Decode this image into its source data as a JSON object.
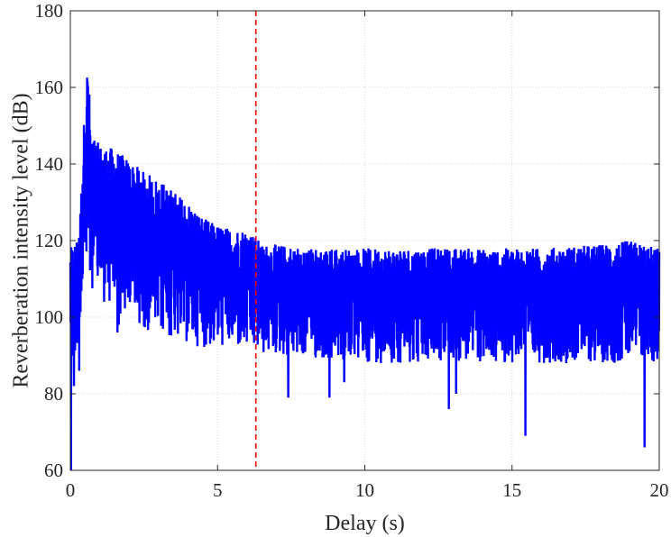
{
  "chart_data": {
    "type": "line",
    "title": "",
    "xlabel": "Delay (s)",
    "ylabel": "Reverberation intensity level (dB)",
    "xlim": [
      0,
      20
    ],
    "ylim": [
      60,
      180
    ],
    "xticks": [
      0,
      5,
      10,
      15,
      20
    ],
    "yticks": [
      60,
      80,
      100,
      120,
      140,
      160,
      180
    ],
    "grid": "dotted",
    "legend": "none",
    "series": [
      {
        "color": "#0000ff",
        "style": "solid",
        "envelope": {
          "x": [
            0,
            0.1,
            0.3,
            0.5,
            0.6,
            0.7,
            1.0,
            1.5,
            2.0,
            2.5,
            3.0,
            3.5,
            4.0,
            4.5,
            5.0,
            5.5,
            6.0,
            6.3,
            6.5,
            7.0,
            8.0,
            10.0,
            12.0,
            14.0,
            16.0,
            18.0,
            19.0,
            20.0
          ],
          "upper": [
            118,
            119,
            121,
            158,
            168,
            148,
            145,
            144,
            141,
            138,
            136,
            133,
            130,
            126,
            124,
            123,
            123,
            121,
            119,
            119,
            118,
            118,
            118,
            118,
            118,
            119,
            120,
            118
          ],
          "lower": [
            82,
            85,
            94,
            108,
            112,
            108,
            104,
            101,
            99,
            97,
            95,
            94,
            93,
            92,
            92,
            92,
            91,
            91,
            90,
            90,
            89,
            88,
            88,
            88,
            88,
            88,
            88,
            88
          ]
        },
        "spikes": [
          {
            "x": 0.02,
            "y": 60
          },
          {
            "x": 0.12,
            "y": 82
          },
          {
            "x": 0.3,
            "y": 86
          },
          {
            "x": 1.6,
            "y": 96
          },
          {
            "x": 1.65,
            "y": 98
          },
          {
            "x": 3.55,
            "y": 98
          },
          {
            "x": 7.4,
            "y": 79
          },
          {
            "x": 8.8,
            "y": 79
          },
          {
            "x": 9.3,
            "y": 83
          },
          {
            "x": 12.85,
            "y": 76
          },
          {
            "x": 13.1,
            "y": 80
          },
          {
            "x": 15.45,
            "y": 69
          },
          {
            "x": 19.5,
            "y": 66
          }
        ]
      }
    ],
    "annotations": [
      {
        "type": "vline",
        "x": 6.3,
        "color": "#ff0000",
        "style": "dashed"
      }
    ]
  }
}
